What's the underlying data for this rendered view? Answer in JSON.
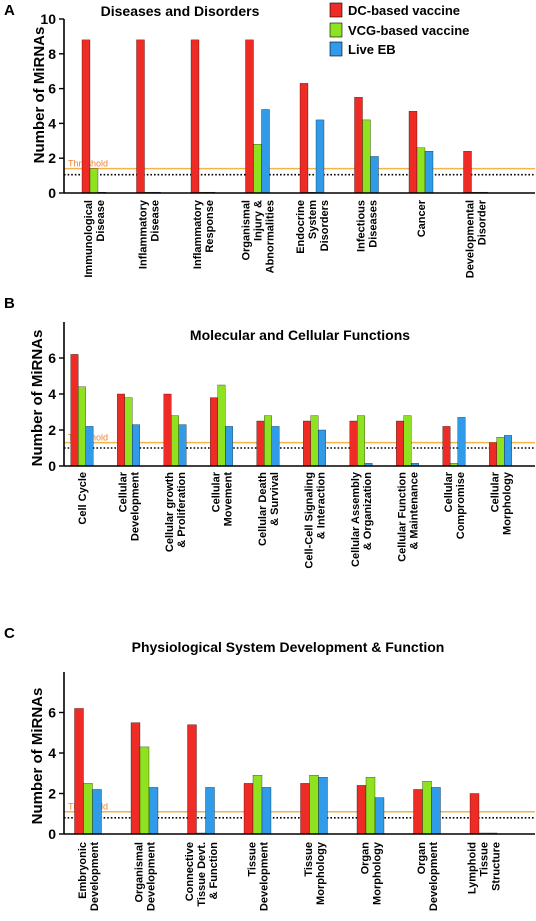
{
  "legend": {
    "entries": [
      {
        "name": "DC-based vaccine",
        "color": "#ee2b24"
      },
      {
        "name": "VCG-based vaccine",
        "color": "#8fe21f"
      },
      {
        "name": "Live EB",
        "color": "#2f9be9"
      }
    ],
    "placement": "top-right (panel A)"
  },
  "threshold_label": "Threshold",
  "colors": {
    "threshold_line": "#f5b44a",
    "threshold_text": "#e8833a",
    "dotted_line": "#000000"
  },
  "chart_data": [
    {
      "type": "bar",
      "panel": "A",
      "title": "Diseases and Disorders",
      "ylabel": "Number of MiRNAs",
      "ylim": [
        0,
        10
      ],
      "yticks": [
        0,
        2,
        4,
        6,
        8,
        10
      ],
      "threshold": 1.4,
      "dotted_line": 1.05,
      "categories": [
        [
          "Immunological",
          "Disease"
        ],
        [
          "Inflammatory",
          "Disease"
        ],
        [
          "Inflammatory",
          "Response"
        ],
        [
          "Organismal",
          "Injury &",
          "Abnormalities"
        ],
        [
          "Endocrine",
          "System",
          "Disorders"
        ],
        [
          "Infectious",
          "Diseases"
        ],
        [
          "Cancer"
        ],
        [
          "Developmental",
          "Disorder"
        ]
      ],
      "series": [
        {
          "name": "DC-based vaccine",
          "values": [
            8.8,
            8.8,
            8.8,
            8.8,
            6.3,
            5.5,
            4.7,
            2.4
          ]
        },
        {
          "name": "VCG-based vaccine",
          "values": [
            1.4,
            0.05,
            0.05,
            2.8,
            0.05,
            4.2,
            2.6,
            0.05
          ]
        },
        {
          "name": "Live EB",
          "values": [
            0.05,
            0.05,
            0.05,
            4.8,
            4.2,
            2.1,
            2.4,
            0.05
          ]
        }
      ]
    },
    {
      "type": "bar",
      "panel": "B",
      "title": "Molecular and Cellular Functions",
      "ylabel": "Number of MiRNAs",
      "ylim": [
        0,
        8
      ],
      "yticks": [
        0,
        2,
        4,
        6
      ],
      "threshold": 1.3,
      "dotted_line": 1.0,
      "categories": [
        [
          "Cell Cycle"
        ],
        [
          "Cellular",
          "Development"
        ],
        [
          "Cellular growth",
          "& Proliferation"
        ],
        [
          "Cellular",
          "Movement"
        ],
        [
          "Cellular Death",
          "& Survival"
        ],
        [
          "Cell-Cell Signaling",
          "& Interaction"
        ],
        [
          "Cellular Assembly",
          "& Organization"
        ],
        [
          "Cellular Function",
          "& Maintenance"
        ],
        [
          "Cellular",
          "Compromise"
        ],
        [
          "Cellular",
          "Morphology"
        ]
      ],
      "series": [
        {
          "name": "DC-based vaccine",
          "values": [
            6.2,
            4.0,
            4.0,
            3.8,
            2.5,
            2.5,
            2.5,
            2.5,
            2.2,
            1.3
          ]
        },
        {
          "name": "VCG-based vaccine",
          "values": [
            4.4,
            3.8,
            2.8,
            4.5,
            2.8,
            2.8,
            2.8,
            2.8,
            0.15,
            1.6
          ]
        },
        {
          "name": "Live EB",
          "values": [
            2.2,
            2.3,
            2.3,
            2.2,
            2.2,
            2.0,
            0.15,
            0.15,
            2.7,
            1.7
          ]
        }
      ]
    },
    {
      "type": "bar",
      "panel": "C",
      "title": "Physiological System Development & Function",
      "ylabel": "Number of MiRNAs",
      "ylim": [
        0,
        8
      ],
      "yticks": [
        0,
        2,
        4,
        6
      ],
      "threshold": 1.1,
      "dotted_line": 0.8,
      "categories": [
        [
          "Embryonic",
          "Development"
        ],
        [
          "Organismal",
          "Development"
        ],
        [
          "Connective",
          "Tissue Devt.",
          "& Function"
        ],
        [
          "Tissue",
          "Development"
        ],
        [
          "Tissue",
          "Morphology"
        ],
        [
          "Organ",
          "Morphology"
        ],
        [
          "Organ",
          "Development"
        ],
        [
          "Lymphoid",
          "Tissue",
          "Structure"
        ]
      ],
      "series": [
        {
          "name": "DC-based vaccine",
          "values": [
            6.2,
            5.5,
            5.4,
            2.5,
            2.5,
            2.4,
            2.2,
            2.0
          ]
        },
        {
          "name": "VCG-based vaccine",
          "values": [
            2.5,
            4.3,
            0.05,
            2.9,
            2.9,
            2.8,
            2.6,
            0.05
          ]
        },
        {
          "name": "Live EB",
          "values": [
            2.2,
            2.3,
            2.3,
            2.3,
            2.8,
            1.8,
            2.3,
            0.05
          ]
        }
      ]
    }
  ]
}
